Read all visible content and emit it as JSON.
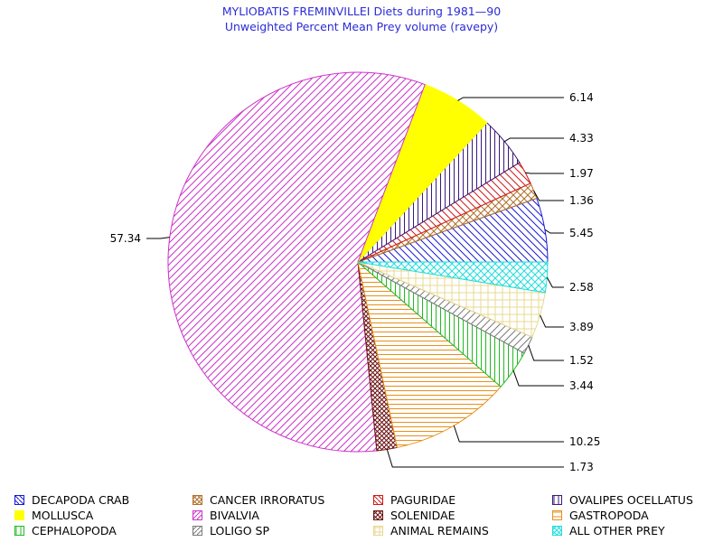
{
  "chart_data": {
    "type": "pie",
    "title": "MYLIOBATIS FREMINVILLEI Diets during 1981—90",
    "subtitle": "Unweighted Percent Mean Prey volume (ravepy)",
    "slices": [
      {
        "name": "DECAPODA CRAB",
        "value": 5.45,
        "label": "5.45",
        "color": "#1a1ad6",
        "pattern": "diag-down"
      },
      {
        "name": "CANCER IRRORATUS",
        "value": 1.36,
        "label": "1.36",
        "color": "#b0702a",
        "pattern": "cross"
      },
      {
        "name": "PAGURIDAE",
        "value": 1.97,
        "label": "1.97",
        "color": "#d01818",
        "pattern": "diag-down"
      },
      {
        "name": "OVALIPES OCELLATUS",
        "value": 4.33,
        "label": "4.33",
        "color": "#3a1a7a",
        "pattern": "vertical"
      },
      {
        "name": "MOLLUSCA",
        "value": 6.14,
        "label": "6.14",
        "color": "#ffff00",
        "pattern": "solid"
      },
      {
        "name": "BIVALVIA",
        "value": 57.34,
        "label": "57.34",
        "color": "#cc33cc",
        "pattern": "diag-up"
      },
      {
        "name": "SOLENIDAE",
        "value": 1.73,
        "label": "1.73",
        "color": "#6a1010",
        "pattern": "cross-dense"
      },
      {
        "name": "GASTROPODA",
        "value": 10.25,
        "label": "10.25",
        "color": "#e8901a",
        "pattern": "horizontal"
      },
      {
        "name": "CEPHALOPODA",
        "value": 3.44,
        "label": "3.44",
        "color": "#22bb22",
        "pattern": "vertical"
      },
      {
        "name": "LOLIGO SP",
        "value": 1.52,
        "label": "1.52",
        "color": "#7a7a7a",
        "pattern": "diag-up"
      },
      {
        "name": "ANIMAL REMAINS",
        "value": 3.89,
        "label": "3.89",
        "color": "#e8d890",
        "pattern": "grid"
      },
      {
        "name": "ALL OTHER PREY",
        "value": 2.58,
        "label": "2.58",
        "color": "#22dddd",
        "pattern": "cross"
      }
    ],
    "legend_placement": "bottom",
    "legend_order": [
      "DECAPODA CRAB",
      "CANCER IRRORATUS",
      "PAGURIDAE",
      "OVALIPES OCELLATUS",
      "MOLLUSCA",
      "BIVALVIA",
      "SOLENIDAE",
      "GASTROPODA",
      "CEPHALOPODA",
      "LOLIGO SP",
      "ANIMAL REMAINS",
      "ALL OTHER PREY"
    ]
  }
}
